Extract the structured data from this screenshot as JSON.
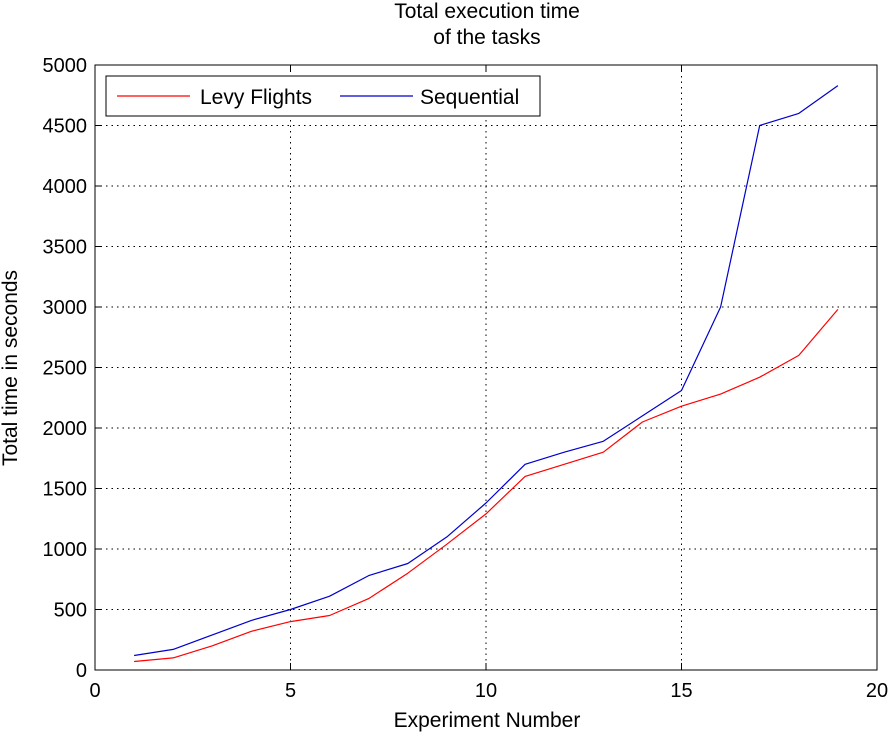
{
  "chart_data": {
    "type": "line",
    "title_lines": [
      "Total execution time",
      "of the tasks"
    ],
    "xlabel": "Experiment Number",
    "ylabel": "Total time in seconds",
    "xlim": [
      0,
      20
    ],
    "ylim": [
      0,
      5000
    ],
    "xticks": [
      0,
      5,
      10,
      15,
      20
    ],
    "yticks": [
      0,
      500,
      1000,
      1500,
      2000,
      2500,
      3000,
      3500,
      4000,
      4500,
      5000
    ],
    "grid": true,
    "grid_style": "dotted",
    "legend_position": "top-left",
    "x": [
      1,
      2,
      3,
      4,
      5,
      6,
      7,
      8,
      9,
      10,
      11,
      12,
      13,
      14,
      15,
      16,
      17,
      18,
      19
    ],
    "series": [
      {
        "name": "Levy Flights",
        "color": "#ff0000",
        "values": [
          70,
          100,
          200,
          320,
          400,
          450,
          590,
          800,
          1040,
          1290,
          1600,
          1700,
          1800,
          2050,
          2180,
          2280,
          2420,
          2600,
          2980
        ]
      },
      {
        "name": "Sequential",
        "color": "#0000cc",
        "values": [
          120,
          170,
          290,
          410,
          500,
          610,
          780,
          880,
          1100,
          1380,
          1700,
          1800,
          1890,
          2100,
          2310,
          3000,
          4500,
          4600,
          4830
        ]
      }
    ]
  }
}
